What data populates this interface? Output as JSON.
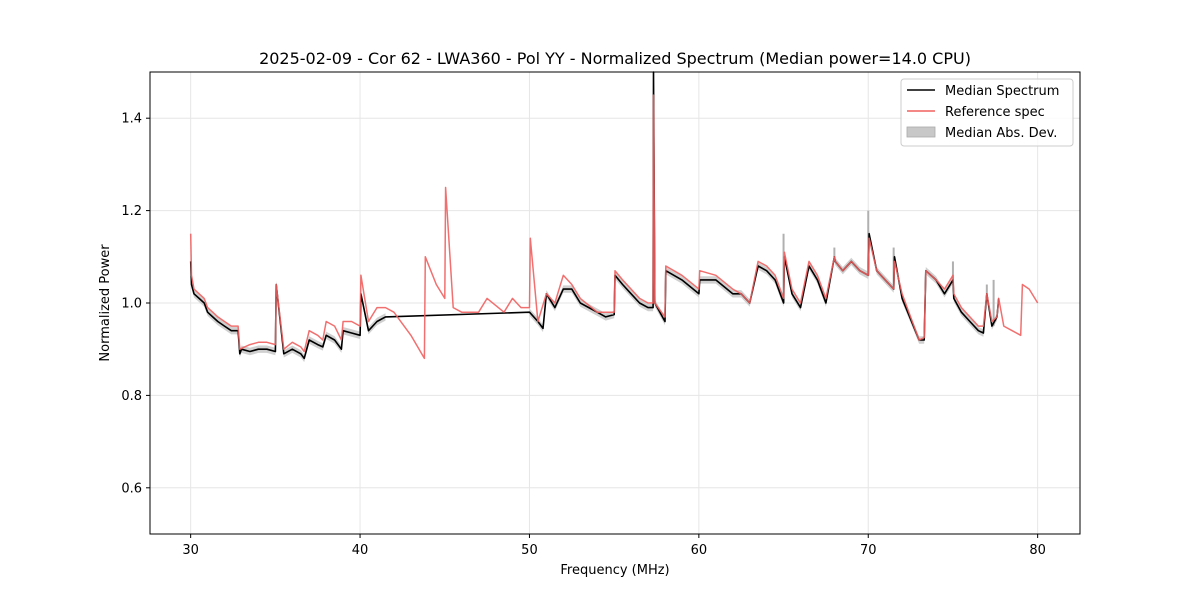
{
  "chart_data": {
    "type": "line",
    "title": "2025-02-09 - Cor 62 - LWA360 - Pol YY - Normalized Spectrum (Median power=14.0 CPU)",
    "xlabel": "Frequency (MHz)",
    "ylabel": "Normalized Power",
    "xlim": [
      27.6,
      82.5
    ],
    "ylim": [
      0.5,
      1.5
    ],
    "xticks": [
      30,
      40,
      50,
      60,
      70,
      80
    ],
    "yticks": [
      0.6,
      0.8,
      1.0,
      1.2,
      1.4
    ],
    "xtick_labels": [
      "30",
      "40",
      "50",
      "60",
      "70",
      "80"
    ],
    "ytick_labels": [
      "0.6",
      "0.8",
      "1.0",
      "1.2",
      "1.4"
    ],
    "grid": true,
    "legend_position": "top-right",
    "legend": [
      {
        "label": "Median Spectrum",
        "color": "#000000",
        "kind": "line"
      },
      {
        "label": "Reference spec",
        "color": "#f0605f",
        "kind": "line"
      },
      {
        "label": "Median Abs. Dev.",
        "color": "#c8c8c8",
        "kind": "patch"
      }
    ],
    "series": [
      {
        "name": "Median Spectrum",
        "color": "#000000",
        "x": [
          30.0,
          30.05,
          30.2,
          30.5,
          30.8,
          31.0,
          31.3,
          31.6,
          32.0,
          32.4,
          32.8,
          32.9,
          33.0,
          33.5,
          34.0,
          34.5,
          35.0,
          35.05,
          35.5,
          36.0,
          36.5,
          36.7,
          37.0,
          37.5,
          37.8,
          38.0,
          38.5,
          38.9,
          39.0,
          39.5,
          40.0,
          40.05,
          40.5,
          41.0,
          41.5,
          50.0,
          50.5,
          50.8,
          51.0,
          51.5,
          52.0,
          52.5,
          53.0,
          54.0,
          54.5,
          55.0,
          55.05,
          55.5,
          56.0,
          56.5,
          57.0,
          57.3,
          57.32,
          57.4,
          58.0,
          58.05,
          59.0,
          60.0,
          60.05,
          61.0,
          62.0,
          62.5,
          63.0,
          63.5,
          64.0,
          64.5,
          65.0,
          65.05,
          65.5,
          66.0,
          66.5,
          67.0,
          67.5,
          68.0,
          68.05,
          68.5,
          69.0,
          69.5,
          70.0,
          70.05,
          70.5,
          71.0,
          71.5,
          71.55,
          72.0,
          73.0,
          73.3,
          73.4,
          74.0,
          74.5,
          75.0,
          75.05,
          75.5,
          76.0,
          76.5,
          76.8,
          77.0,
          77.3,
          77.6,
          77.7
        ],
        "values": [
          1.09,
          1.04,
          1.02,
          1.01,
          1.0,
          0.98,
          0.97,
          0.96,
          0.95,
          0.94,
          0.94,
          0.89,
          0.9,
          0.895,
          0.9,
          0.9,
          0.895,
          1.04,
          0.89,
          0.9,
          0.89,
          0.88,
          0.92,
          0.91,
          0.905,
          0.93,
          0.92,
          0.9,
          0.94,
          0.935,
          0.93,
          1.02,
          0.94,
          0.96,
          0.97,
          0.98,
          0.96,
          0.945,
          1.02,
          0.99,
          1.03,
          1.03,
          1.0,
          0.98,
          0.97,
          0.975,
          1.06,
          1.04,
          1.02,
          1.0,
          0.99,
          0.99,
          1.5,
          1.0,
          0.96,
          1.07,
          1.05,
          1.02,
          1.05,
          1.05,
          1.02,
          1.02,
          1.0,
          1.08,
          1.07,
          1.05,
          1.0,
          1.1,
          1.02,
          0.99,
          1.08,
          1.05,
          1.0,
          1.1,
          1.09,
          1.07,
          1.09,
          1.07,
          1.06,
          1.15,
          1.07,
          1.05,
          1.03,
          1.1,
          1.01,
          0.92,
          0.92,
          1.07,
          1.05,
          1.02,
          1.05,
          1.01,
          0.98,
          0.96,
          0.94,
          0.935,
          1.02,
          0.95,
          0.97,
          1.01
        ]
      },
      {
        "name": "Reference spec",
        "color": "#f0605f",
        "x": [
          30.0,
          30.05,
          30.2,
          30.5,
          30.8,
          31.0,
          31.3,
          31.6,
          32.0,
          32.4,
          32.8,
          32.9,
          33.5,
          34.0,
          34.5,
          35.0,
          35.05,
          35.5,
          36.0,
          36.5,
          36.7,
          37.0,
          37.5,
          37.8,
          38.0,
          38.5,
          38.9,
          39.0,
          39.5,
          40.0,
          40.05,
          40.5,
          41.0,
          41.5,
          42.0,
          43.0,
          43.8,
          43.85,
          44.5,
          45.0,
          45.05,
          45.5,
          46.0,
          47.0,
          47.5,
          48.5,
          49.0,
          49.5,
          50.0,
          50.05,
          50.5,
          51.0,
          51.5,
          52.0,
          52.5,
          53.0,
          54.0,
          54.5,
          55.0,
          55.05,
          55.5,
          56.0,
          56.5,
          57.0,
          57.3,
          57.32,
          57.4,
          58.0,
          58.05,
          59.0,
          60.0,
          60.05,
          61.0,
          62.0,
          62.5,
          63.0,
          63.5,
          64.0,
          64.5,
          65.0,
          65.05,
          65.5,
          66.0,
          66.5,
          67.0,
          67.5,
          68.0,
          68.05,
          68.5,
          69.0,
          69.5,
          70.0,
          70.05,
          70.5,
          71.0,
          71.5,
          71.55,
          72.0,
          73.0,
          73.3,
          73.4,
          74.0,
          74.5,
          75.0,
          75.05,
          75.5,
          76.0,
          76.5,
          76.8,
          77.0,
          77.3,
          77.6,
          77.7,
          78.0,
          78.5,
          79.0,
          79.1,
          79.5,
          80.0
        ],
        "values": [
          1.15,
          1.06,
          1.03,
          1.02,
          1.01,
          0.99,
          0.98,
          0.97,
          0.96,
          0.95,
          0.95,
          0.9,
          0.91,
          0.915,
          0.915,
          0.91,
          1.04,
          0.9,
          0.915,
          0.905,
          0.895,
          0.94,
          0.93,
          0.92,
          0.96,
          0.95,
          0.92,
          0.96,
          0.96,
          0.95,
          1.06,
          0.96,
          0.99,
          0.99,
          0.98,
          0.93,
          0.88,
          1.1,
          1.04,
          1.01,
          1.25,
          0.99,
          0.98,
          0.98,
          1.01,
          0.98,
          1.01,
          0.99,
          0.99,
          1.14,
          0.96,
          1.02,
          1.0,
          1.06,
          1.04,
          1.01,
          0.98,
          0.98,
          0.98,
          1.07,
          1.05,
          1.03,
          1.01,
          1.0,
          1.0,
          1.45,
          1.0,
          0.97,
          1.08,
          1.06,
          1.03,
          1.07,
          1.06,
          1.03,
          1.02,
          1.0,
          1.09,
          1.08,
          1.06,
          1.01,
          1.11,
          1.03,
          1.0,
          1.09,
          1.06,
          1.01,
          1.1,
          1.09,
          1.07,
          1.09,
          1.07,
          1.06,
          1.14,
          1.07,
          1.05,
          1.03,
          1.09,
          1.02,
          0.92,
          0.925,
          1.07,
          1.05,
          1.03,
          1.06,
          1.02,
          0.99,
          0.97,
          0.95,
          0.95,
          1.02,
          0.96,
          0.97,
          1.01,
          0.95,
          0.94,
          0.93,
          1.04,
          1.03,
          1.0
        ]
      }
    ],
    "mad_band": {
      "name": "Median Abs. Dev.",
      "color": "#c8c8c8",
      "x_ranges": [
        [
          30.0,
          41.5
        ],
        [
          50.0,
          77.7
        ]
      ],
      "half_width": 0.008,
      "spikes": [
        {
          "x": 65.0,
          "upper": 1.15
        },
        {
          "x": 70.0,
          "upper": 1.2
        },
        {
          "x": 68.0,
          "upper": 1.12
        },
        {
          "x": 71.5,
          "upper": 1.12
        },
        {
          "x": 75.0,
          "upper": 1.09
        },
        {
          "x": 77.0,
          "upper": 1.04
        },
        {
          "x": 77.4,
          "upper": 1.05
        }
      ]
    }
  }
}
